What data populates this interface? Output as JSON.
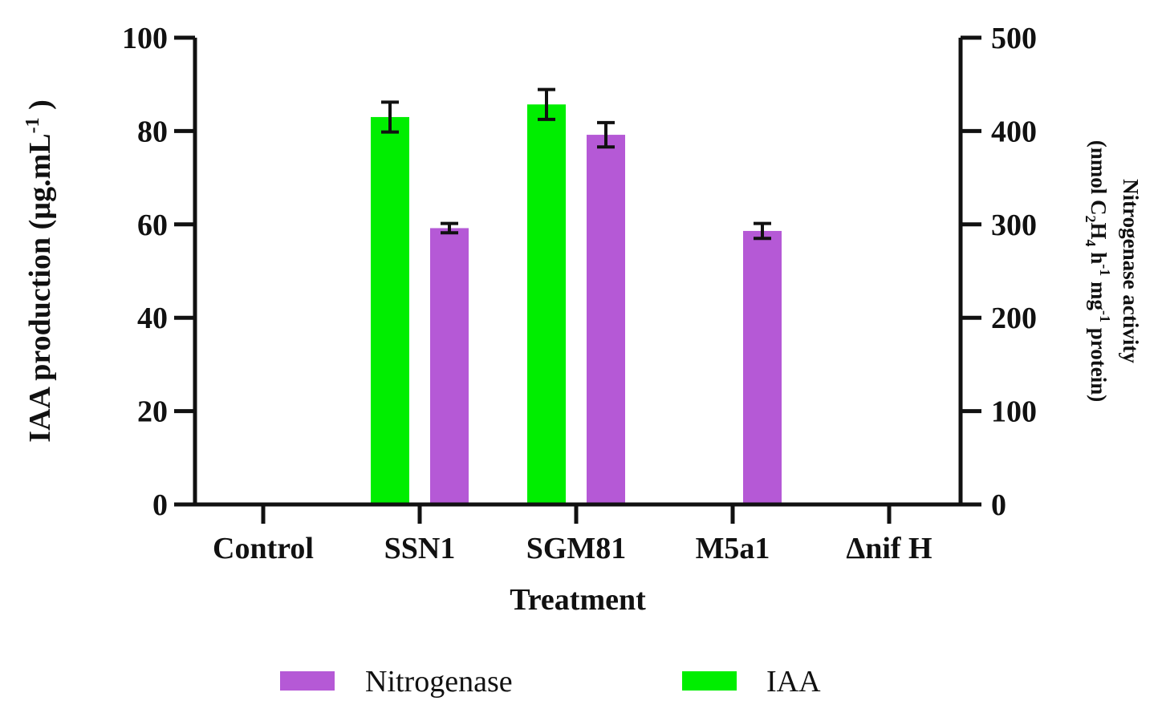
{
  "chart_data": {
    "type": "bar",
    "title": "",
    "xlabel": "Treatment",
    "ylabel_left": "IAA production (µg.mL",
    "ylabel_left_sup": "-1",
    "ylabel_left_close": " )",
    "ylabel_right": {
      "line1": "Nitrogenase activity",
      "p_open": "(nmol C",
      "sub2": "2",
      "h_letter": "H",
      "sub4": "4",
      "h_unit": " h",
      "sup1": "-1",
      "mg": " mg",
      "sup2": "-1",
      "protein": " protein)"
    },
    "categories": [
      "Control",
      "SSN1",
      "SGM81",
      "M5a1",
      "Δnif H"
    ],
    "ylim_left": [
      0,
      100
    ],
    "yticks_left": [
      "0",
      "20",
      "40",
      "60",
      "80",
      "100"
    ],
    "ylim_right": [
      0,
      500
    ],
    "yticks_right": [
      "0",
      "100",
      "200",
      "300",
      "400",
      "500"
    ],
    "series": [
      {
        "name": "IAA",
        "axis": "left",
        "color": "#00ee00",
        "values": [
          0,
          83,
          85.7,
          0,
          0
        ],
        "errors": [
          0,
          3.2,
          3.2,
          0,
          0
        ]
      },
      {
        "name": "Nitrogenase",
        "axis": "right",
        "color": "#b559d6",
        "values": [
          0,
          296,
          396,
          293,
          0
        ],
        "errors": [
          0,
          5,
          13,
          8,
          0
        ]
      }
    ],
    "legend": {
      "position": "bottom",
      "order": [
        "Nitrogenase",
        "IAA"
      ]
    },
    "grid": false
  }
}
